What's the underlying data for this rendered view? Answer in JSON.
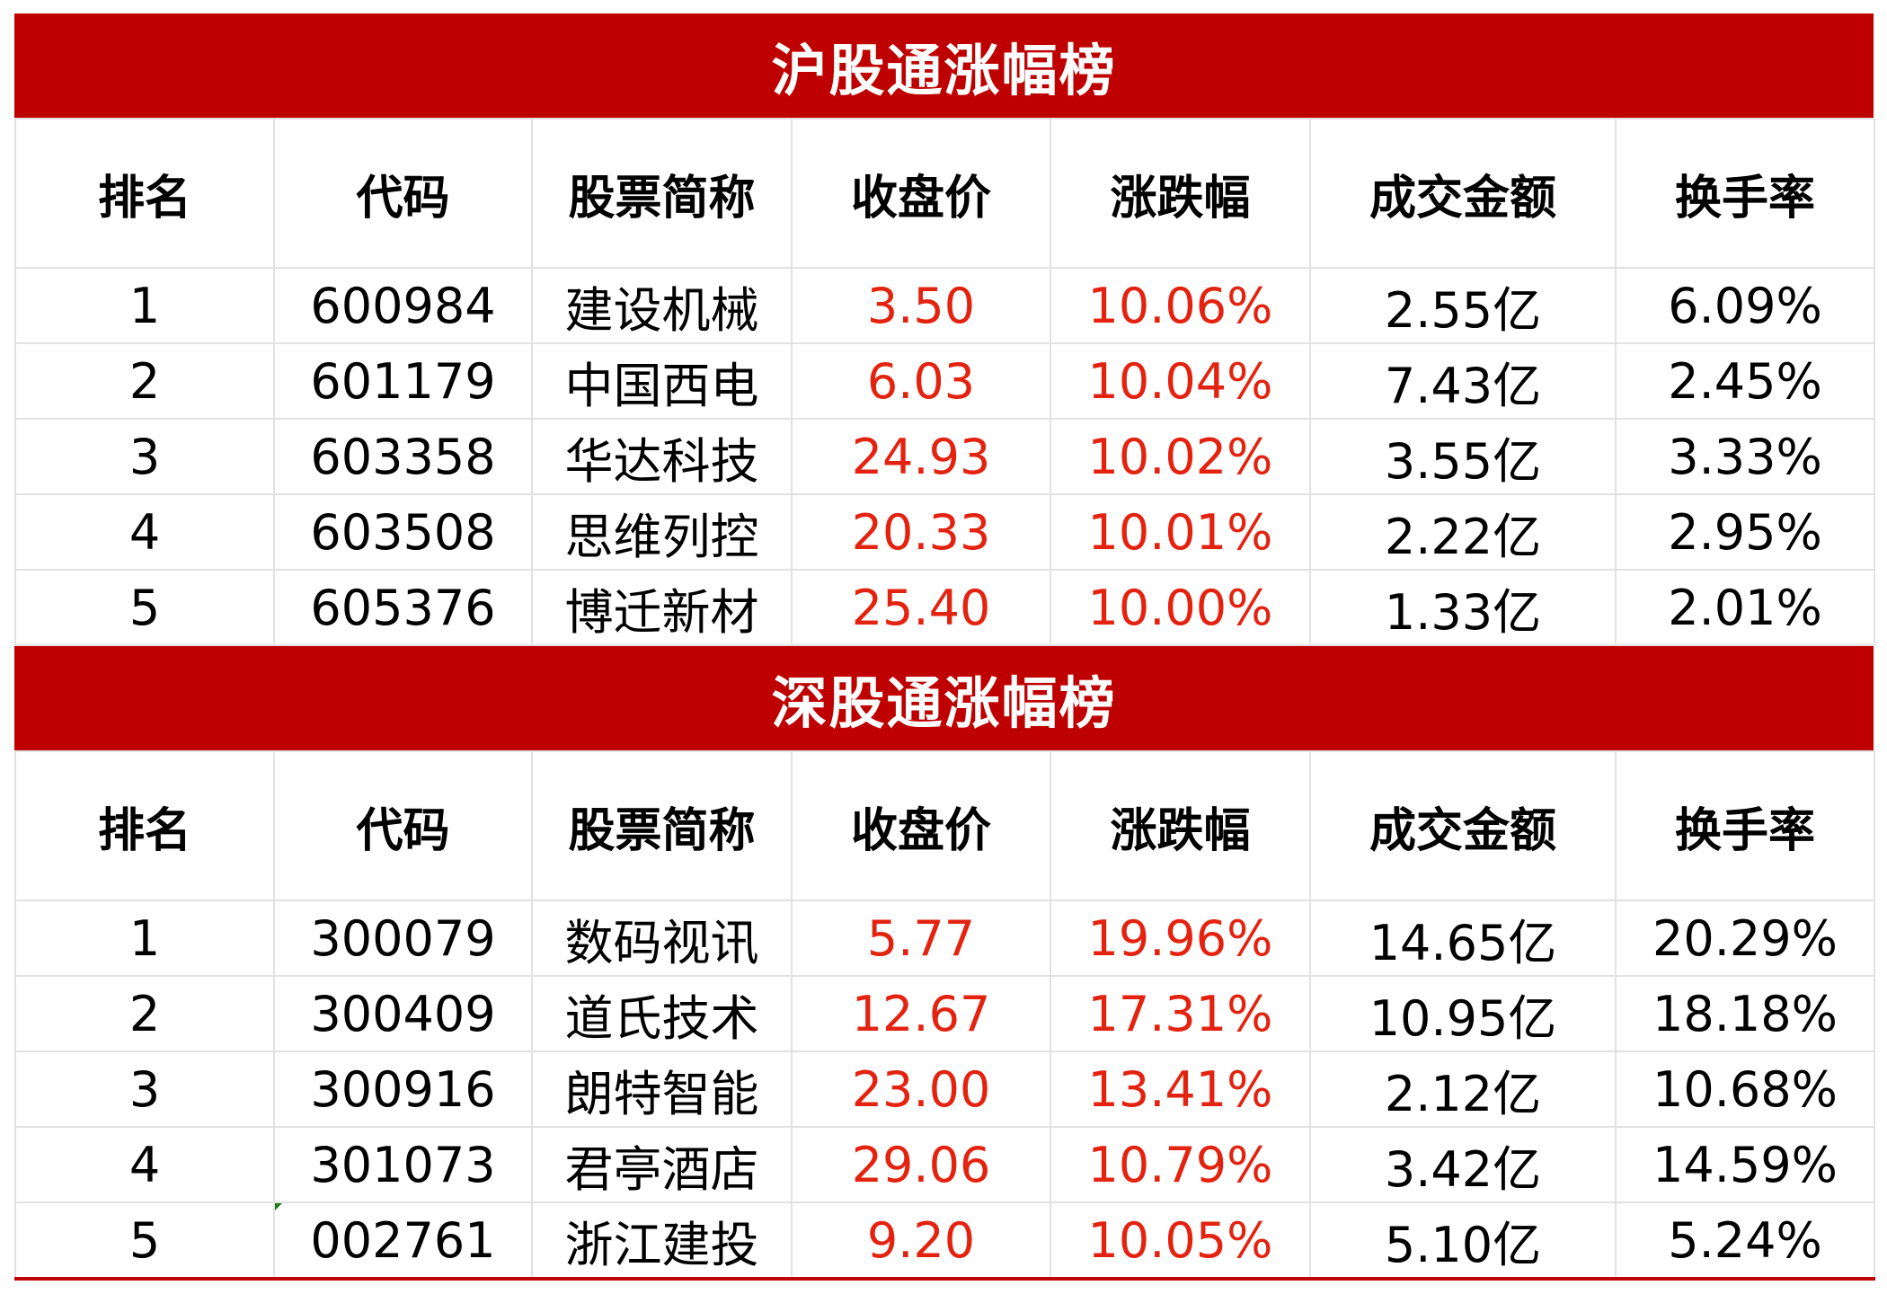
{
  "headers": [
    "排名",
    "代码",
    "股票简称",
    "收盘价",
    "涨跌幅",
    "成交金额",
    "换手率"
  ],
  "colors": {
    "title_bg": "#bf0000",
    "up": "#e3230f"
  },
  "sections": [
    {
      "title": "沪股通涨幅榜",
      "rows": [
        [
          "1",
          "600984",
          "建设机械",
          "3.50",
          "10.06%",
          "2.55亿",
          "6.09%"
        ],
        [
          "2",
          "601179",
          "中国西电",
          "6.03",
          "10.04%",
          "7.43亿",
          "2.45%"
        ],
        [
          "3",
          "603358",
          "华达科技",
          "24.93",
          "10.02%",
          "3.55亿",
          "3.33%"
        ],
        [
          "4",
          "603508",
          "思维列控",
          "20.33",
          "10.01%",
          "2.22亿",
          "2.95%"
        ],
        [
          "5",
          "605376",
          "博迁新材",
          "25.40",
          "10.00%",
          "1.33亿",
          "2.01%"
        ]
      ]
    },
    {
      "title": "深股通涨幅榜",
      "rows": [
        [
          "1",
          "300079",
          "数码视讯",
          "5.77",
          "19.96%",
          "14.65亿",
          "20.29%"
        ],
        [
          "2",
          "300409",
          "道氏技术",
          "12.67",
          "17.31%",
          "10.95亿",
          "18.18%"
        ],
        [
          "3",
          "300916",
          "朗特智能",
          "23.00",
          "13.41%",
          "2.12亿",
          "10.68%"
        ],
        [
          "4",
          "301073",
          "君亭酒店",
          "29.06",
          "10.79%",
          "3.42亿",
          "14.59%"
        ],
        [
          "5",
          "002761",
          "浙江建投",
          "9.20",
          "10.05%",
          "5.10亿",
          "5.24%"
        ]
      ]
    }
  ]
}
